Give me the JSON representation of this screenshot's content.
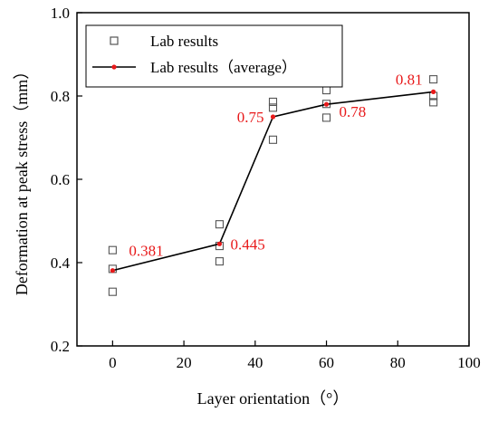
{
  "chart_data": {
    "type": "scatter",
    "xlabel": "Layer orientation（°）",
    "ylabel": "Deformation at peak stress（mm）",
    "xlim": [
      -10,
      100
    ],
    "ylim": [
      0.2,
      1.0
    ],
    "xticks": [
      0,
      20,
      40,
      60,
      80,
      100
    ],
    "yticks": [
      0.2,
      0.4,
      0.6,
      0.8,
      1.0
    ],
    "xtick_labels": [
      "0",
      "20",
      "40",
      "60",
      "80",
      "100"
    ],
    "ytick_labels": [
      "0.2",
      "0.4",
      "0.6",
      "0.8",
      "1.0"
    ],
    "grid": false,
    "legend_position": "top-left",
    "series": [
      {
        "name": "Lab results",
        "type": "scatter",
        "marker": "open-square",
        "color": "#555555",
        "points": [
          {
            "x": 0,
            "y": 0.43
          },
          {
            "x": 0,
            "y": 0.385
          },
          {
            "x": 0,
            "y": 0.33
          },
          {
            "x": 30,
            "y": 0.492
          },
          {
            "x": 30,
            "y": 0.44
          },
          {
            "x": 30,
            "y": 0.403
          },
          {
            "x": 45,
            "y": 0.786
          },
          {
            "x": 45,
            "y": 0.772
          },
          {
            "x": 45,
            "y": 0.695
          },
          {
            "x": 60,
            "y": 0.814
          },
          {
            "x": 60,
            "y": 0.781
          },
          {
            "x": 60,
            "y": 0.748
          },
          {
            "x": 90,
            "y": 0.84
          },
          {
            "x": 90,
            "y": 0.8
          },
          {
            "x": 90,
            "y": 0.785
          }
        ]
      },
      {
        "name": "Lab results（average）",
        "type": "line",
        "color": "#000000",
        "marker_color": "#e8191a",
        "points": [
          {
            "x": 0,
            "y": 0.381
          },
          {
            "x": 30,
            "y": 0.445
          },
          {
            "x": 45,
            "y": 0.75
          },
          {
            "x": 60,
            "y": 0.78
          },
          {
            "x": 90,
            "y": 0.81
          }
        ]
      }
    ],
    "annotations": [
      {
        "text": "0.381",
        "x": 0,
        "y": 0.381,
        "position": "upper-right"
      },
      {
        "text": "0.445",
        "x": 30,
        "y": 0.445,
        "position": "right"
      },
      {
        "text": "0.75",
        "x": 45,
        "y": 0.75,
        "position": "left"
      },
      {
        "text": "0.78",
        "x": 60,
        "y": 0.78,
        "position": "lower-right"
      },
      {
        "text": "0.81",
        "x": 90,
        "y": 0.81,
        "position": "upper-left"
      }
    ],
    "annotation_color": "#e8191a"
  }
}
